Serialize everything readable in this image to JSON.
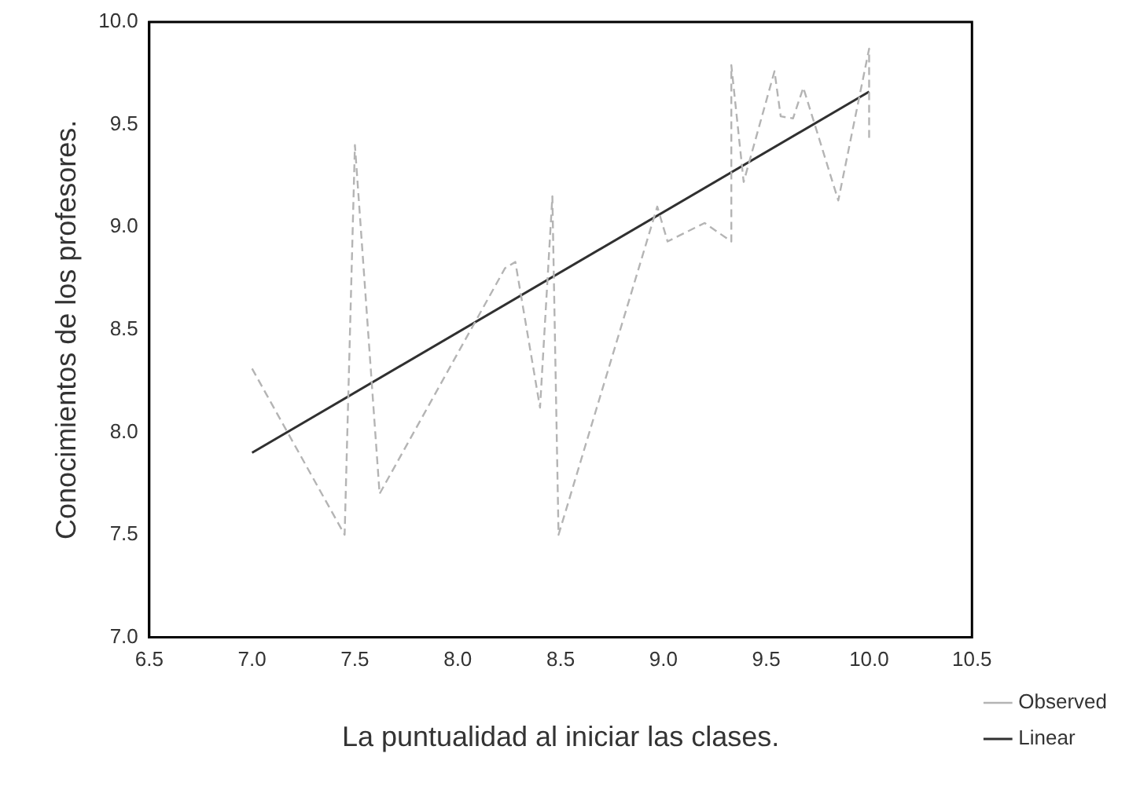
{
  "chart_data": {
    "type": "line",
    "xlabel": "La puntualidad al iniciar las clases.",
    "ylabel": "Conocimientos de los profesores.",
    "xlim": [
      6.5,
      10.5
    ],
    "xticks": [
      {
        "value": 6.5,
        "label": "6.5"
      },
      {
        "value": 7,
        "label": "7.0"
      },
      {
        "value": 7.5,
        "label": "7.5"
      },
      {
        "value": 8,
        "label": "8.0"
      },
      {
        "value": 8.5,
        "label": "8.5"
      },
      {
        "value": 9,
        "label": "9.0"
      },
      {
        "value": 9.5,
        "label": "9.5"
      },
      {
        "value": 10,
        "label": "10.0"
      },
      {
        "value": 10.5,
        "label": "10.5"
      }
    ],
    "ylim": [
      7,
      10
    ],
    "yticks": [
      {
        "value": 7,
        "label": "7.0"
      },
      {
        "value": 7.5,
        "label": "7.5"
      },
      {
        "value": 8,
        "label": "8.0"
      },
      {
        "value": 8.5,
        "label": "8.5"
      },
      {
        "value": 9,
        "label": "9.0"
      },
      {
        "value": 9.5,
        "label": "9.5"
      },
      {
        "value": 10,
        "label": "10.0"
      }
    ],
    "grid": false,
    "legend": "right",
    "marker": "none",
    "series": [
      {
        "name": "Observed",
        "color": "#b4b4b4",
        "line_style": "dashed",
        "x": [
          7.0,
          7.45,
          7.5,
          7.62,
          8.23,
          8.28,
          8.4,
          8.46,
          8.49,
          8.97,
          9.02,
          9.2,
          9.33,
          9.33,
          9.39,
          9.54,
          9.57,
          9.63,
          9.68,
          9.85,
          10.0,
          10.0
        ],
        "values": [
          8.31,
          7.5,
          9.4,
          7.7,
          8.8,
          8.83,
          8.12,
          9.15,
          7.5,
          9.1,
          8.93,
          9.02,
          8.93,
          9.79,
          9.22,
          9.76,
          9.54,
          9.53,
          9.68,
          9.13,
          9.87,
          9.42
        ]
      },
      {
        "name": "Linear",
        "color": "#303030",
        "line_style": "solid",
        "x": [
          7.0,
          10.0
        ],
        "values": [
          7.9,
          9.66
        ]
      }
    ]
  }
}
